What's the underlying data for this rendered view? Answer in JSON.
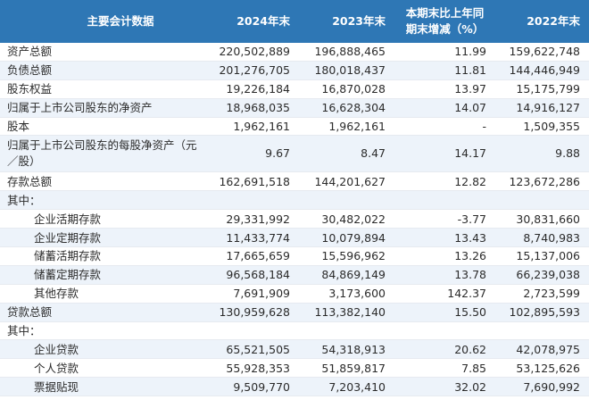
{
  "headers": [
    "主要会计数据",
    "2024年末",
    "2023年末",
    "本期末比上年同期末增减（%）",
    "2022年末"
  ],
  "rows": [
    {
      "label": "资产总额",
      "v2024": "220,502,889",
      "v2023": "196,888,465",
      "change": "11.99",
      "v2022": "159,622,748"
    },
    {
      "label": "负债总额",
      "v2024": "201,276,705",
      "v2023": "180,018,437",
      "change": "11.81",
      "v2022": "144,446,949"
    },
    {
      "label": "股东权益",
      "v2024": "19,226,184",
      "v2023": "16,870,028",
      "change": "13.97",
      "v2022": "15,175,799"
    },
    {
      "label": "归属于上市公司股东的净资产",
      "v2024": "18,968,035",
      "v2023": "16,628,304",
      "change": "14.07",
      "v2022": "14,916,127"
    },
    {
      "label": "股本",
      "v2024": "1,962,161",
      "v2023": "1,962,161",
      "change": "-",
      "v2022": "1,509,355"
    },
    {
      "label": "归属于上市公司股东的每股净资产（元／股）",
      "v2024": "9.67",
      "v2023": "8.47",
      "change": "14.17",
      "v2022": "9.88"
    },
    {
      "label": "存款总额",
      "v2024": "162,691,518",
      "v2023": "144,201,627",
      "change": "12.82",
      "v2022": "123,672,286"
    },
    {
      "label": "其中：",
      "v2024": "",
      "v2023": "",
      "change": "",
      "v2022": ""
    },
    {
      "label": "企业活期存款",
      "v2024": "29,331,992",
      "v2023": "30,482,022",
      "change": "-3.77",
      "v2022": "30,831,660"
    },
    {
      "label": "企业定期存款",
      "v2024": "11,433,774",
      "v2023": "10,079,894",
      "change": "13.43",
      "v2022": "8,740,983"
    },
    {
      "label": "储蓄活期存款",
      "v2024": "17,665,659",
      "v2023": "15,596,962",
      "change": "13.26",
      "v2022": "15,137,006"
    },
    {
      "label": "储蓄定期存款",
      "v2024": "96,568,184",
      "v2023": "84,869,149",
      "change": "13.78",
      "v2022": "66,239,038"
    },
    {
      "label": "其他存款",
      "v2024": "7,691,909",
      "v2023": "3,173,600",
      "change": "142.37",
      "v2022": "2,723,599"
    },
    {
      "label": "贷款总额",
      "v2024": "130,959,628",
      "v2023": "113,382,140",
      "change": "15.50",
      "v2022": "102,895,593"
    },
    {
      "label": "其中：",
      "v2024": "",
      "v2023": "",
      "change": "",
      "v2022": ""
    },
    {
      "label": "企业贷款",
      "v2024": "65,521,505",
      "v2023": "54,318,913",
      "change": "20.62",
      "v2022": "42,078,975"
    },
    {
      "label": "个人贷款",
      "v2024": "55,928,353",
      "v2023": "51,859,817",
      "change": "7.85",
      "v2022": "53,125,626"
    },
    {
      "label": "票据贴现",
      "v2024": "9,509,770",
      "v2023": "7,203,410",
      "change": "32.02",
      "v2022": "7,690,992"
    }
  ],
  "colors": {
    "header_bg": "#2e77b5",
    "alt_row": "#edf3fa"
  }
}
